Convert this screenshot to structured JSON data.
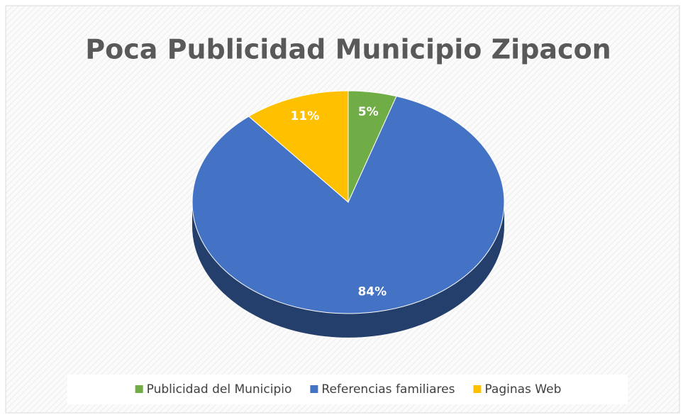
{
  "chart_data": {
    "type": "pie",
    "title": "Poca Publicidad Municipio Zipacon",
    "categories": [
      "Publicidad del Municipio",
      "Referencias familiares",
      "Paginas Web"
    ],
    "values": [
      5,
      84,
      11
    ],
    "value_labels": [
      "5%",
      "84%",
      "11%"
    ],
    "colors": [
      "#70ad47",
      "#4472c4",
      "#ffc000"
    ],
    "legend": "bottom"
  }
}
